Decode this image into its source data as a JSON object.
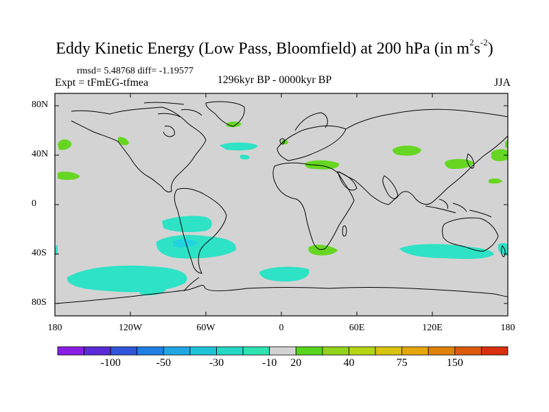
{
  "title_main": "Eddy Kinetic Energy (Low Pass, Bloomfield) at 200 hPa (in m",
  "title_sup1": "2",
  "title_mid": "s",
  "title_sup2": "-2",
  "title_end": ")",
  "stats": "rmsd= 5.48768  diff= -1.19577",
  "expt": "Expt = tFmEG-tfmea",
  "period": "1296kyr BP - 0000kyr BP",
  "season": "JJA",
  "map": {
    "ocean_color": "#d3d3d3",
    "lat_ticks": [
      "80N",
      "40N",
      "0",
      "40S",
      "80S"
    ],
    "lon_ticks": [
      "180",
      "120W",
      "60W",
      "0",
      "60E",
      "120E",
      "180"
    ],
    "lon_tick_values": [
      -180,
      -120,
      -60,
      0,
      60,
      120,
      180
    ],
    "lat_tick_values": [
      80,
      40,
      0,
      -40,
      -80
    ]
  },
  "colorbar": {
    "colors": [
      "#8a1de4",
      "#5a2bd6",
      "#2f55d8",
      "#1f7fe2",
      "#21a6e4",
      "#1fc3d8",
      "#25d8c6",
      "#2ee2b2",
      "#d3d3d3",
      "#56d41e",
      "#92d21a",
      "#b4d414",
      "#d8c40e",
      "#e4a60c",
      "#e0820a",
      "#dc5a0c",
      "#d8300e"
    ],
    "labels": [
      "-100",
      "-50",
      "-30",
      "-10",
      "20",
      "40",
      "75",
      "150"
    ]
  },
  "field_colors": {
    "negative": "#2ee2c6",
    "negative_strong": "#22d2e0",
    "positive": "#66d622"
  }
}
